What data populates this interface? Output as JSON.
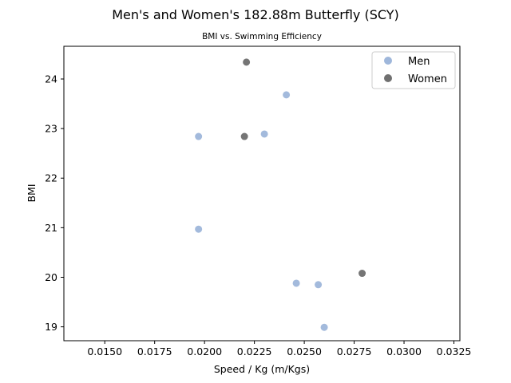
{
  "chart_data": {
    "type": "scatter",
    "title": "Men's and Women's 182.88m Butterfly (SCY)",
    "subtitle": "BMI vs. Swimming Efficiency",
    "xlabel": "Speed / Kg (m/Kgs)",
    "ylabel": "BMI",
    "xlim": [
      0.01295,
      0.0328
    ],
    "ylim": [
      18.72,
      24.66
    ],
    "xticks": [
      0.015,
      0.0175,
      0.02,
      0.0225,
      0.025,
      0.0275,
      0.03,
      0.0325
    ],
    "xtick_labels": [
      "0.0150",
      "0.0175",
      "0.0200",
      "0.0225",
      "0.0250",
      "0.0275",
      "0.0300",
      "0.0325"
    ],
    "yticks": [
      19,
      20,
      21,
      22,
      23,
      24
    ],
    "ytick_labels": [
      "19",
      "20",
      "21",
      "22",
      "23",
      "24"
    ],
    "grid": false,
    "legend_position": "top-right",
    "series": [
      {
        "name": "Men",
        "color": "#7f9fcf",
        "points": [
          {
            "x": 0.0241,
            "y": 23.68
          },
          {
            "x": 0.023,
            "y": 22.89
          },
          {
            "x": 0.0197,
            "y": 22.84
          },
          {
            "x": 0.0197,
            "y": 20.97
          },
          {
            "x": 0.0246,
            "y": 19.88
          },
          {
            "x": 0.0257,
            "y": 19.85
          },
          {
            "x": 0.026,
            "y": 18.99
          }
        ]
      },
      {
        "name": "Women",
        "color": "#404040",
        "points": [
          {
            "x": 0.0221,
            "y": 24.34
          },
          {
            "x": 0.022,
            "y": 22.84
          },
          {
            "x": 0.0279,
            "y": 20.08
          }
        ]
      }
    ]
  }
}
